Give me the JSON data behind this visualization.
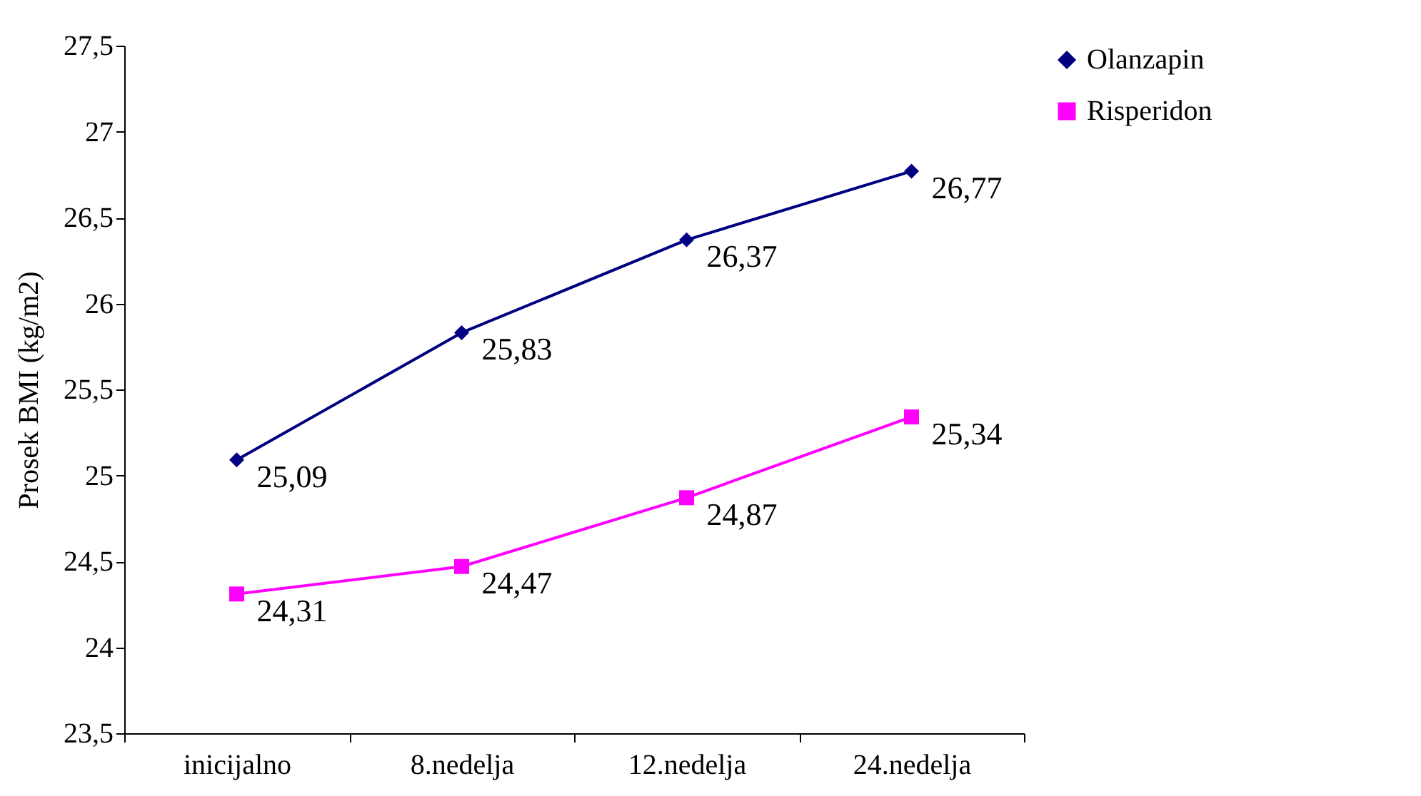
{
  "chart_data": {
    "type": "line",
    "categories": [
      "inicijalno",
      "8.nedelja",
      "12.nedelja",
      "24.nedelja"
    ],
    "series": [
      {
        "name": "Olanzapin",
        "color": "#000080",
        "marker": "diamond",
        "values": [
          25.09,
          25.83,
          26.37,
          26.77
        ],
        "value_labels": [
          "25,09",
          "25,83",
          "26,37",
          "26,77"
        ]
      },
      {
        "name": "Risperidon",
        "color": "#ff00ff",
        "marker": "square",
        "values": [
          24.31,
          24.47,
          24.87,
          25.34
        ],
        "value_labels": [
          "24,31",
          "24,47",
          "24,87",
          "25,34"
        ]
      }
    ],
    "ylabel": "Prosek BMI (kg/m2)",
    "ylim": [
      23.5,
      27.5
    ],
    "yticks": [
      {
        "value": 23.5,
        "label": "23,5"
      },
      24,
      {
        "value": 24.5,
        "label": "24,5"
      },
      25,
      {
        "value": 25.5,
        "label": "25,5"
      },
      26,
      {
        "value": 26.5,
        "label": "26,5"
      },
      27,
      {
        "value": 27.5,
        "label": "27,5"
      }
    ],
    "grid": false,
    "legend": "right",
    "line_style": "solid"
  }
}
